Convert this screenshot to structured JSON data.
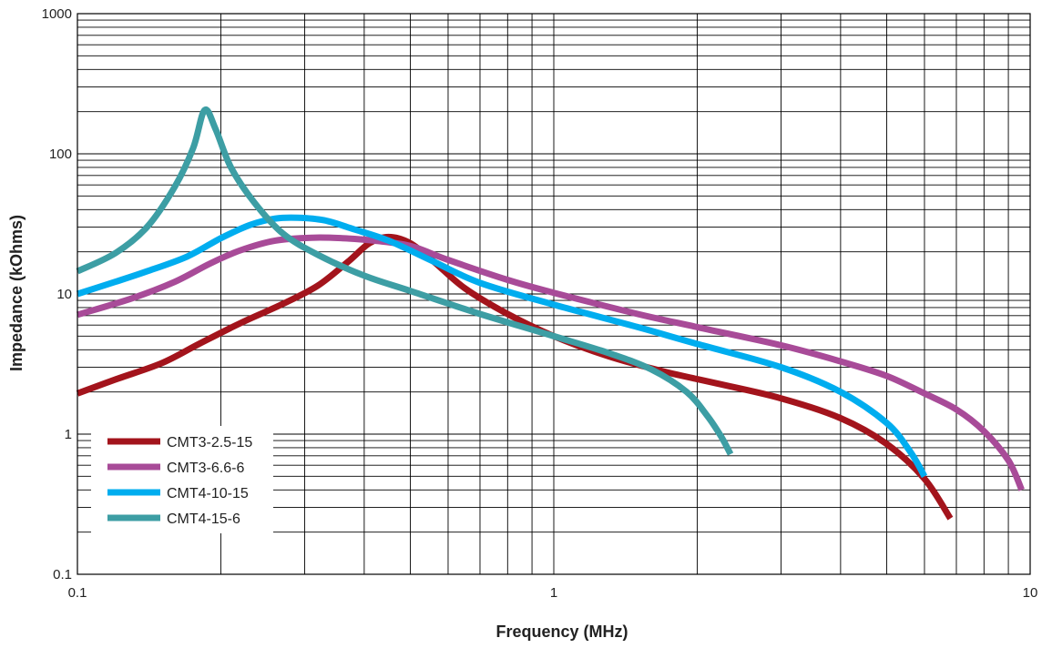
{
  "chart_data": {
    "type": "line",
    "xlabel": "Frequency (MHz)",
    "ylabel": "Impedance (kOhms)",
    "x_scale": "log",
    "y_scale": "log",
    "xlim": [
      0.1,
      10
    ],
    "ylim": [
      0.1,
      1000
    ],
    "x_tick_labels": [
      "0.1",
      "1",
      "10"
    ],
    "y_tick_labels": [
      "0.1",
      "1",
      "10",
      "100",
      "1000"
    ],
    "grid": true,
    "legend_position": "bottom-left",
    "series": [
      {
        "name": "CMT3-2.5-15",
        "color": "#A3141C",
        "points": [
          [
            0.1,
            1.95
          ],
          [
            0.12,
            2.45
          ],
          [
            0.15,
            3.2
          ],
          [
            0.18,
            4.4
          ],
          [
            0.22,
            6.2
          ],
          [
            0.27,
            8.5
          ],
          [
            0.32,
            11.5
          ],
          [
            0.37,
            17
          ],
          [
            0.41,
            23
          ],
          [
            0.45,
            25.5
          ],
          [
            0.5,
            23
          ],
          [
            0.56,
            17
          ],
          [
            0.65,
            11
          ],
          [
            0.8,
            7.2
          ],
          [
            1.0,
            5.0
          ],
          [
            1.3,
            3.6
          ],
          [
            1.7,
            2.8
          ],
          [
            2.2,
            2.3
          ],
          [
            3.0,
            1.8
          ],
          [
            4.0,
            1.3
          ],
          [
            5.0,
            0.85
          ],
          [
            6.0,
            0.48
          ],
          [
            6.8,
            0.25
          ]
        ]
      },
      {
        "name": "CMT3-6.6-6",
        "color": "#A84B98",
        "points": [
          [
            0.1,
            7.1
          ],
          [
            0.13,
            9.3
          ],
          [
            0.16,
            12.2
          ],
          [
            0.19,
            16.5
          ],
          [
            0.22,
            20.5
          ],
          [
            0.26,
            24
          ],
          [
            0.31,
            25.2
          ],
          [
            0.36,
            25
          ],
          [
            0.42,
            24
          ],
          [
            0.5,
            22
          ],
          [
            0.6,
            17.5
          ],
          [
            0.8,
            12.6
          ],
          [
            1.0,
            10.2
          ],
          [
            1.5,
            7.2
          ],
          [
            2.0,
            5.8
          ],
          [
            3.0,
            4.3
          ],
          [
            4.0,
            3.3
          ],
          [
            5.0,
            2.6
          ],
          [
            6.0,
            1.95
          ],
          [
            7.0,
            1.5
          ],
          [
            8.0,
            1.05
          ],
          [
            9.0,
            0.65
          ],
          [
            9.6,
            0.4
          ]
        ]
      },
      {
        "name": "CMT4-10-15",
        "color": "#00ADEF",
        "points": [
          [
            0.1,
            10
          ],
          [
            0.12,
            12.2
          ],
          [
            0.14,
            14.5
          ],
          [
            0.17,
            18.5
          ],
          [
            0.2,
            25
          ],
          [
            0.23,
            31
          ],
          [
            0.26,
            34.5
          ],
          [
            0.29,
            35
          ],
          [
            0.33,
            33.5
          ],
          [
            0.38,
            29
          ],
          [
            0.45,
            24
          ],
          [
            0.55,
            17.5
          ],
          [
            0.7,
            12
          ],
          [
            1.0,
            8.4
          ],
          [
            1.5,
            5.8
          ],
          [
            2.0,
            4.4
          ],
          [
            3.0,
            3.0
          ],
          [
            4.0,
            2.0
          ],
          [
            5.0,
            1.2
          ],
          [
            5.6,
            0.75
          ],
          [
            6.0,
            0.5
          ]
        ]
      },
      {
        "name": "CMT4-15-6",
        "color": "#3D9EA4",
        "points": [
          [
            0.1,
            14.5
          ],
          [
            0.12,
            19.5
          ],
          [
            0.14,
            30
          ],
          [
            0.16,
            58
          ],
          [
            0.175,
            110
          ],
          [
            0.185,
            205
          ],
          [
            0.195,
            150
          ],
          [
            0.21,
            80
          ],
          [
            0.235,
            45
          ],
          [
            0.27,
            27
          ],
          [
            0.32,
            19
          ],
          [
            0.4,
            13.5
          ],
          [
            0.5,
            10.5
          ],
          [
            0.7,
            7.2
          ],
          [
            1.0,
            5.0
          ],
          [
            1.3,
            3.8
          ],
          [
            1.6,
            2.9
          ],
          [
            1.9,
            2.0
          ],
          [
            2.1,
            1.35
          ],
          [
            2.25,
            0.95
          ],
          [
            2.35,
            0.72
          ]
        ]
      }
    ]
  }
}
